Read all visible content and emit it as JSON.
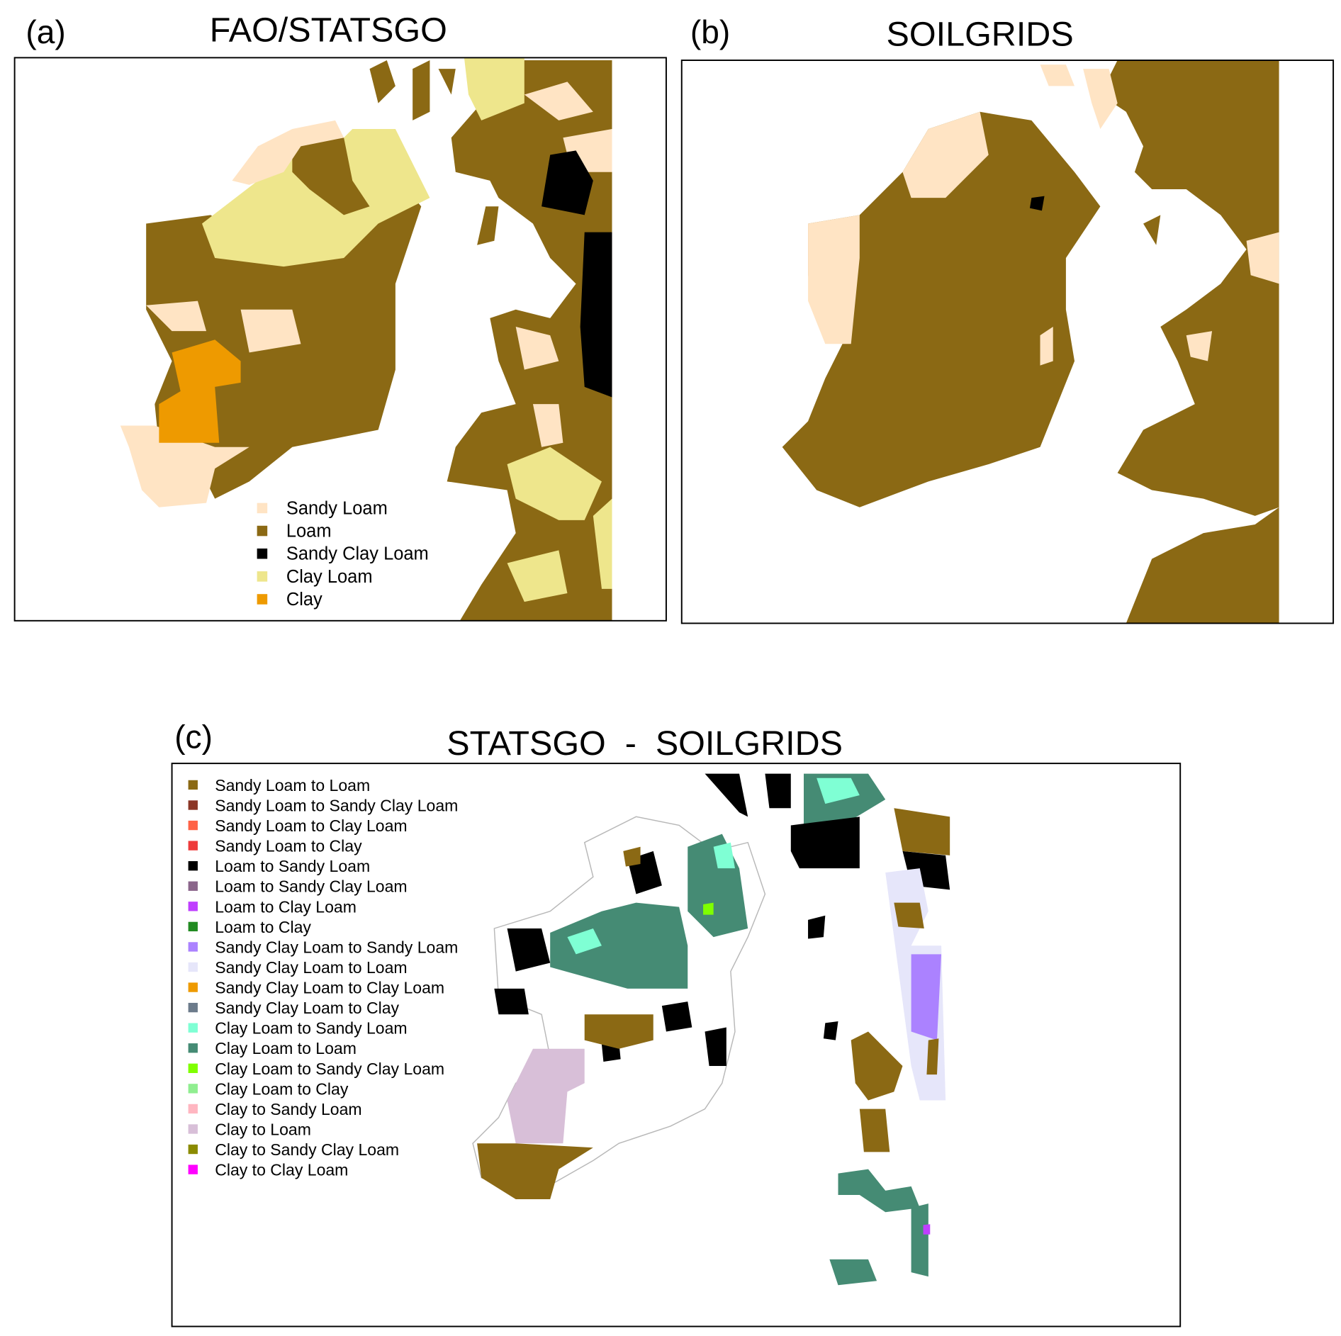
{
  "panels": {
    "a": {
      "label": "(a)",
      "title": "FAO/STATSGO"
    },
    "b": {
      "label": "(b)",
      "title": "SOILGRIDS"
    },
    "c": {
      "label": "(c)",
      "title": "STATSGO  -  SOILGRIDS"
    }
  },
  "colors": {
    "sandy_loam": "#FFE4C4",
    "loam": "#8B6914",
    "sandy_clay_loam": "#000000",
    "clay_loam": "#EEE68C",
    "clay": "#EE9A00"
  },
  "legend_a": [
    {
      "label": "Sandy Loam",
      "color": "#FFE4C4"
    },
    {
      "label": "Loam",
      "color": "#8B6914"
    },
    {
      "label": "Sandy Clay Loam",
      "color": "#000000"
    },
    {
      "label": "Clay Loam",
      "color": "#EEE68C"
    },
    {
      "label": "Clay",
      "color": "#EE9A00"
    }
  ],
  "legend_c": [
    {
      "label": "Sandy Loam to Loam",
      "color": "#8B6914"
    },
    {
      "label": "Sandy Loam to Sandy Clay Loam",
      "color": "#8B3626"
    },
    {
      "label": "Sandy Loam to Clay Loam",
      "color": "#FF6347"
    },
    {
      "label": "Sandy Loam to Clay",
      "color": "#EE3B3B"
    },
    {
      "label": "Loam to Sandy Loam",
      "color": "#000000"
    },
    {
      "label": "Loam to Sandy Clay Loam",
      "color": "#8B668B"
    },
    {
      "label": "Loam to Clay Loam",
      "color": "#BF3EFF"
    },
    {
      "label": "Loam to Clay",
      "color": "#228B22"
    },
    {
      "label": "Sandy Clay Loam to Sandy Loam",
      "color": "#AB82FF"
    },
    {
      "label": "Sandy Clay Loam to Loam",
      "color": "#E6E6FA"
    },
    {
      "label": "Sandy Clay Loam to Clay Loam",
      "color": "#EE9A00"
    },
    {
      "label": "Sandy Clay Loam to Clay",
      "color": "#6C7B8B"
    },
    {
      "label": "Clay Loam to Sandy Loam",
      "color": "#7FFFD4"
    },
    {
      "label": "Clay Loam to Loam",
      "color": "#458B74"
    },
    {
      "label": "Clay Loam to Sandy Clay Loam",
      "color": "#7FFF00"
    },
    {
      "label": "Clay Loam to Clay",
      "color": "#90EE90"
    },
    {
      "label": "Clay to Sandy Loam",
      "color": "#FFB6C1"
    },
    {
      "label": "Clay to Loam",
      "color": "#D8BFD8"
    },
    {
      "label": "Clay to Sandy Clay Loam",
      "color": "#8B8B00"
    },
    {
      "label": "Clay to Clay Loam",
      "color": "#FF00FF"
    }
  ]
}
